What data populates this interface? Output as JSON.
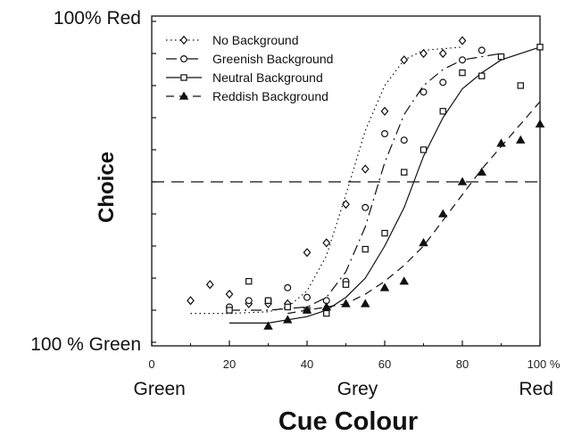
{
  "chart_data": {
    "type": "line",
    "xlabel": "Cue Colour",
    "ylabel": "Choice",
    "y_top_label": "100% Red",
    "y_bottom_label": "100 % Green",
    "x_tick_labels": [
      "0",
      "20",
      "40",
      "60",
      "80",
      "100 %"
    ],
    "x_ticks": [
      0,
      20,
      40,
      60,
      80,
      100
    ],
    "x_category_labels": [
      "Green",
      "Grey",
      "Red"
    ],
    "x_category_positions": [
      2,
      53,
      99
    ],
    "xlim": [
      0,
      100
    ],
    "ylim": [
      0,
      1
    ],
    "reference_line_y": 0.5,
    "legend_position": "top-left",
    "grid": false,
    "series": [
      {
        "name": "No Background",
        "marker": "diamond",
        "line": "dotted",
        "points": [
          [
            10,
            0.13
          ],
          [
            15,
            0.18
          ],
          [
            20,
            0.15
          ],
          [
            25,
            0.12
          ],
          [
            30,
            0.12
          ],
          [
            35,
            0.12
          ],
          [
            40,
            0.28
          ],
          [
            45,
            0.31
          ],
          [
            50,
            0.43
          ],
          [
            55,
            0.54
          ],
          [
            60,
            0.72
          ],
          [
            65,
            0.88
          ],
          [
            70,
            0.9
          ],
          [
            75,
            0.9
          ],
          [
            80,
            0.94
          ]
        ],
        "fit": [
          [
            10,
            0.09
          ],
          [
            20,
            0.09
          ],
          [
            30,
            0.095
          ],
          [
            35,
            0.11
          ],
          [
            40,
            0.16
          ],
          [
            45,
            0.27
          ],
          [
            50,
            0.46
          ],
          [
            55,
            0.66
          ],
          [
            60,
            0.8
          ],
          [
            65,
            0.88
          ],
          [
            70,
            0.91
          ],
          [
            80,
            0.92
          ]
        ]
      },
      {
        "name": "Greenish Background",
        "marker": "circle",
        "line": "dash-dot",
        "points": [
          [
            20,
            0.11
          ],
          [
            25,
            0.13
          ],
          [
            30,
            0.13
          ],
          [
            35,
            0.17
          ],
          [
            40,
            0.14
          ],
          [
            45,
            0.13
          ],
          [
            50,
            0.19
          ],
          [
            55,
            0.42
          ],
          [
            60,
            0.65
          ],
          [
            65,
            0.63
          ],
          [
            70,
            0.78
          ],
          [
            75,
            0.81
          ],
          [
            80,
            0.88
          ],
          [
            85,
            0.91
          ]
        ],
        "fit": [
          [
            20,
            0.1
          ],
          [
            30,
            0.1
          ],
          [
            40,
            0.11
          ],
          [
            45,
            0.14
          ],
          [
            50,
            0.22
          ],
          [
            55,
            0.36
          ],
          [
            60,
            0.56
          ],
          [
            65,
            0.71
          ],
          [
            70,
            0.8
          ],
          [
            75,
            0.85
          ],
          [
            80,
            0.88
          ],
          [
            90,
            0.9
          ]
        ]
      },
      {
        "name": "Neutral Background",
        "marker": "square",
        "line": "solid",
        "points": [
          [
            20,
            0.1
          ],
          [
            25,
            0.19
          ],
          [
            30,
            0.13
          ],
          [
            35,
            0.11
          ],
          [
            40,
            0.1
          ],
          [
            45,
            0.09
          ],
          [
            50,
            0.18
          ],
          [
            55,
            0.29
          ],
          [
            60,
            0.34
          ],
          [
            65,
            0.53
          ],
          [
            70,
            0.6
          ],
          [
            75,
            0.72
          ],
          [
            80,
            0.84
          ],
          [
            85,
            0.83
          ],
          [
            90,
            0.89
          ],
          [
            95,
            0.8
          ],
          [
            100,
            0.92
          ]
        ],
        "fit": [
          [
            20,
            0.06
          ],
          [
            30,
            0.06
          ],
          [
            40,
            0.08
          ],
          [
            45,
            0.1
          ],
          [
            50,
            0.14
          ],
          [
            55,
            0.2
          ],
          [
            60,
            0.3
          ],
          [
            65,
            0.42
          ],
          [
            70,
            0.58
          ],
          [
            75,
            0.7
          ],
          [
            80,
            0.79
          ],
          [
            85,
            0.84
          ],
          [
            90,
            0.88
          ],
          [
            100,
            0.92
          ]
        ]
      },
      {
        "name": "Reddish Background",
        "marker": "triangle",
        "line": "dashed",
        "points": [
          [
            30,
            0.05
          ],
          [
            35,
            0.07
          ],
          [
            40,
            0.1
          ],
          [
            45,
            0.11
          ],
          [
            50,
            0.12
          ],
          [
            55,
            0.12
          ],
          [
            60,
            0.17
          ],
          [
            65,
            0.19
          ],
          [
            70,
            0.31
          ],
          [
            75,
            0.4
          ],
          [
            80,
            0.5
          ],
          [
            85,
            0.53
          ],
          [
            90,
            0.62
          ],
          [
            95,
            0.63
          ],
          [
            100,
            0.68
          ]
        ],
        "fit": [
          [
            35,
            0.09
          ],
          [
            40,
            0.1
          ],
          [
            45,
            0.11
          ],
          [
            50,
            0.12
          ],
          [
            55,
            0.15
          ],
          [
            60,
            0.19
          ],
          [
            65,
            0.24
          ],
          [
            70,
            0.3
          ],
          [
            75,
            0.38
          ],
          [
            80,
            0.46
          ],
          [
            85,
            0.54
          ],
          [
            90,
            0.61
          ],
          [
            95,
            0.68
          ],
          [
            100,
            0.75
          ]
        ]
      }
    ]
  }
}
